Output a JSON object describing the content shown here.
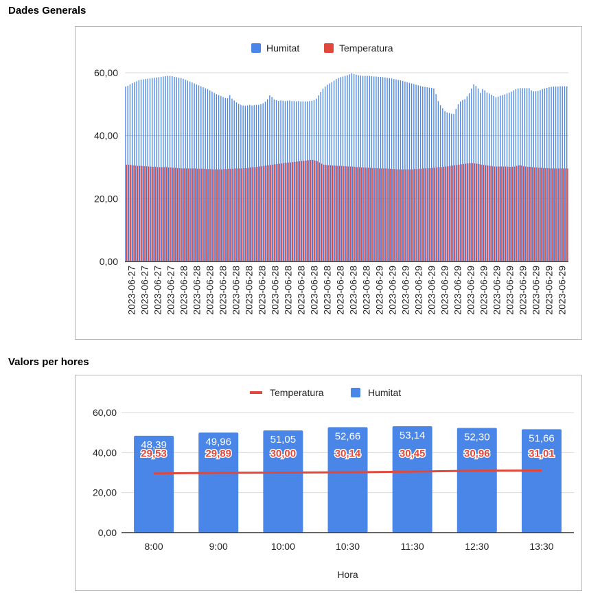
{
  "sections": {
    "general_title": "Dades Generals",
    "hourly_title": "Valors per hores"
  },
  "colors": {
    "humidity": "#4a86e8",
    "temperature": "#e0483c",
    "grid": "#d9d9d9",
    "axis": "#333333"
  },
  "chart_data": [
    {
      "type": "bar",
      "title": "",
      "xlabel": "",
      "ylabel": "",
      "ylim": [
        0,
        60
      ],
      "yticks": [
        "0,00",
        "20,00",
        "40,00",
        "60,00"
      ],
      "ytick_values": [
        0,
        20,
        40,
        60
      ],
      "grid": true,
      "legend": {
        "placement": "top-center",
        "entries": [
          "Humitat",
          "Temperatura"
        ]
      },
      "x_tick_labels": [
        "2023-06-27",
        "2023-06-27",
        "2023-06-27",
        "2023-06-27",
        "2023-06-28",
        "2023-06-28",
        "2023-06-28",
        "2023-06-28",
        "2023-06-28",
        "2023-06-28",
        "2023-06-28",
        "2023-06-28",
        "2023-06-28",
        "2023-06-28",
        "2023-06-28",
        "2023-06-28",
        "2023-06-28",
        "2023-06-28",
        "2023-06-28",
        "2023-06-29",
        "2023-06-29",
        "2023-06-29",
        "2023-06-29",
        "2023-06-29",
        "2023-06-29",
        "2023-06-29",
        "2023-06-29",
        "2023-06-29",
        "2023-06-29",
        "2023-06-29",
        "2023-06-29",
        "2023-06-29",
        "2023-06-29",
        "2023-06-29"
      ],
      "series": [
        {
          "name": "Humitat",
          "values": [
            55.6,
            55.9,
            56.3,
            56.7,
            57.0,
            57.3,
            57.6,
            57.8,
            57.9,
            58.0,
            58.1,
            58.2,
            58.3,
            58.4,
            58.5,
            58.6,
            58.7,
            58.8,
            58.9,
            59.0,
            59.0,
            58.9,
            58.7,
            58.6,
            58.4,
            58.3,
            58.1,
            57.8,
            57.5,
            57.2,
            56.9,
            56.6,
            56.3,
            56.0,
            55.7,
            55.4,
            55.1,
            54.8,
            54.4,
            54.0,
            53.6,
            53.2,
            52.9,
            52.6,
            52.3,
            52.0,
            51.9,
            52.9,
            51.8,
            51.2,
            50.6,
            50.1,
            49.8,
            49.6,
            49.5,
            49.6,
            49.8,
            49.6,
            49.7,
            49.8,
            49.8,
            50.0,
            50.3,
            50.8,
            51.6,
            52.8,
            52.3,
            51.5,
            51.3,
            51.1,
            51.2,
            51.1,
            51.0,
            51.1,
            51.2,
            51.0,
            51.0,
            50.9,
            51.0,
            50.9,
            50.9,
            50.9,
            50.9,
            51.0,
            51.1,
            51.3,
            51.8,
            52.8,
            53.9,
            54.9,
            55.6,
            56.2,
            56.6,
            57.0,
            57.5,
            58.0,
            58.3,
            58.6,
            58.8,
            59.0,
            59.2,
            59.5,
            59.8,
            59.6,
            59.4,
            59.2,
            59.1,
            59.0,
            59.0,
            59.0,
            59.0,
            58.9,
            58.8,
            58.8,
            58.7,
            58.7,
            58.6,
            58.5,
            58.4,
            58.3,
            58.2,
            58.0,
            57.9,
            57.7,
            57.6,
            57.4,
            57.2,
            57.0,
            56.8,
            56.6,
            56.4,
            56.2,
            56.0,
            55.8,
            55.6,
            55.5,
            55.4,
            55.3,
            55.2,
            55.0,
            53.2,
            51.0,
            49.7,
            48.7,
            47.8,
            47.4,
            47.2,
            47.0,
            46.9,
            48.5,
            50.0,
            50.9,
            51.3,
            51.6,
            52.5,
            53.5,
            55.0,
            56.3,
            55.8,
            55.0,
            53.6,
            54.8,
            54.4,
            53.7,
            53.4,
            53.0,
            52.6,
            52.2,
            52.4,
            52.7,
            52.9,
            53.1,
            53.4,
            53.7,
            54.0,
            54.4,
            54.8,
            55.0,
            55.1,
            55.1,
            55.1,
            55.1,
            55.1,
            54.4,
            54.1,
            54.1,
            54.2,
            54.5,
            54.8,
            55.0,
            55.2,
            55.4,
            55.5,
            55.6,
            55.6,
            55.6,
            55.7,
            55.7,
            55.7,
            55.7
          ]
        },
        {
          "name": "Temperatura",
          "values": [
            30.8,
            30.8,
            30.7,
            30.6,
            30.5,
            30.4,
            30.4,
            30.4,
            30.3,
            30.3,
            30.2,
            30.2,
            30.1,
            30.1,
            30.0,
            30.0,
            30.0,
            30.0,
            30.0,
            29.9,
            29.9,
            29.8,
            29.8,
            29.7,
            29.7,
            29.6,
            29.6,
            29.6,
            29.6,
            29.6,
            29.6,
            29.6,
            29.5,
            29.5,
            29.5,
            29.5,
            29.4,
            29.4,
            29.4,
            29.3,
            29.3,
            29.3,
            29.3,
            29.3,
            29.4,
            29.4,
            29.5,
            29.5,
            29.5,
            29.6,
            29.6,
            29.6,
            29.6,
            29.7,
            29.7,
            29.8,
            29.9,
            30.0,
            30.0,
            30.1,
            30.2,
            30.3,
            30.4,
            30.5,
            30.6,
            30.7,
            30.8,
            30.9,
            31.0,
            31.1,
            31.2,
            31.3,
            31.4,
            31.5,
            31.5,
            31.6,
            31.7,
            31.8,
            31.9,
            32.0,
            32.0,
            32.1,
            32.2,
            32.3,
            32.3,
            32.1,
            31.9,
            31.5,
            31.1,
            30.8,
            30.7,
            30.6,
            30.6,
            30.5,
            30.5,
            30.4,
            30.4,
            30.4,
            30.3,
            30.3,
            30.2,
            30.2,
            30.2,
            30.1,
            30.0,
            30.0,
            29.9,
            29.9,
            29.8,
            29.8,
            29.8,
            29.7,
            29.7,
            29.7,
            29.6,
            29.6,
            29.6,
            29.6,
            29.5,
            29.5,
            29.4,
            29.4,
            29.3,
            29.3,
            29.3,
            29.3,
            29.3,
            29.3,
            29.3,
            29.3,
            29.4,
            29.4,
            29.5,
            29.5,
            29.6,
            29.6,
            29.7,
            29.7,
            29.8,
            29.8,
            29.9,
            30.0,
            30.0,
            30.1,
            30.2,
            30.3,
            30.4,
            30.5,
            30.6,
            30.7,
            30.8,
            30.9,
            31.0,
            31.1,
            31.2,
            31.3,
            31.3,
            31.2,
            31.1,
            31.0,
            30.8,
            30.7,
            30.6,
            30.5,
            30.4,
            30.3,
            30.2,
            30.2,
            30.2,
            30.2,
            30.2,
            30.2,
            30.2,
            30.1,
            30.1,
            30.2,
            30.4,
            30.6,
            30.5,
            30.3,
            30.2,
            30.1,
            30.1,
            30.0,
            29.9,
            29.9,
            29.8,
            29.8,
            29.7,
            29.7,
            29.7,
            29.6,
            29.6,
            29.6,
            29.6,
            29.6,
            29.6,
            29.6,
            29.6,
            29.6
          ]
        }
      ]
    },
    {
      "type": "bar",
      "title": "",
      "xlabel": "Hora",
      "ylabel": "",
      "ylim": [
        0,
        60
      ],
      "yticks": [
        "0,00",
        "20,00",
        "40,00",
        "60,00"
      ],
      "ytick_values": [
        0,
        20,
        40,
        60
      ],
      "grid": true,
      "legend": {
        "placement": "top-center",
        "entries": [
          "Temperatura",
          "Humitat"
        ]
      },
      "categories": [
        "8:00",
        "9:00",
        "10:00",
        "10:30",
        "11:30",
        "12:30",
        "13:30"
      ],
      "series": [
        {
          "name": "Humitat",
          "type": "bar",
          "values": [
            48.39,
            49.96,
            51.05,
            52.66,
            53.14,
            52.3,
            51.66
          ],
          "labels": [
            "48,39",
            "49,96",
            "51,05",
            "52,66",
            "53,14",
            "52,30",
            "51,66"
          ]
        },
        {
          "name": "Temperatura",
          "type": "line",
          "values": [
            29.53,
            29.89,
            30.0,
            30.14,
            30.45,
            30.96,
            31.01
          ],
          "labels": [
            "29,53",
            "29,89",
            "30,00",
            "30,14",
            "30,45",
            "30,96",
            "31,01"
          ]
        }
      ]
    }
  ]
}
